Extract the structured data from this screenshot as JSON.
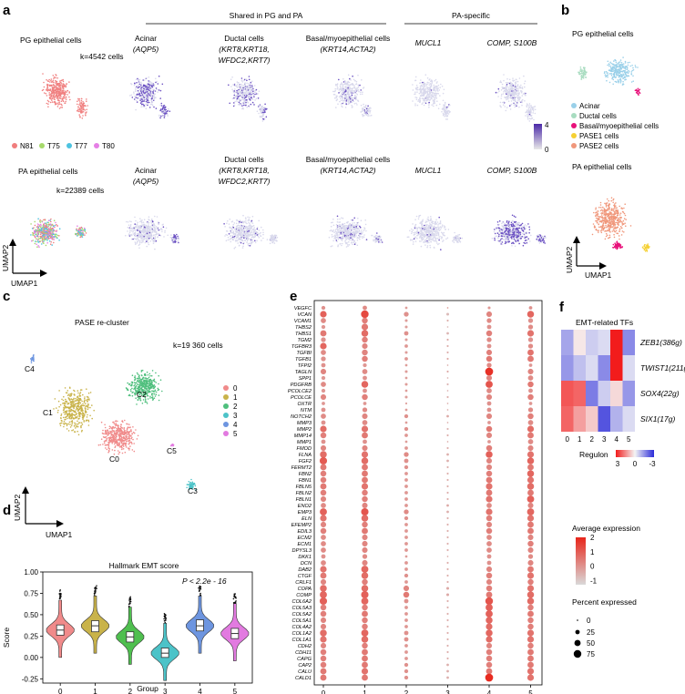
{
  "panels": {
    "a": "a",
    "b": "b",
    "c": "c",
    "d": "d",
    "e": "e",
    "f": "f"
  },
  "panel_a": {
    "shared_header": "Shared in PG and PA",
    "specific_header": "PA-specific",
    "pg_title": "PG epithelial cells",
    "pg_count": "k=4542 cells",
    "pa_title": "PA epithelial cells",
    "pa_count": "k=22389 cells",
    "legend": [
      {
        "label": "N81",
        "color": "#f07d7d"
      },
      {
        "label": "T75",
        "color": "#a6d96a"
      },
      {
        "label": "T77",
        "color": "#4dc3e0"
      },
      {
        "label": "T80",
        "color": "#e57fe5"
      }
    ],
    "markers": [
      {
        "title": "Acinar",
        "genes": "(AQP5)"
      },
      {
        "title": "Ductal cells",
        "genes": "(KRT8,KRT18,",
        "genes2": "WFDC2,KRT7)"
      },
      {
        "title": "Basal/myoepithelial cells",
        "genes": "(KRT14,ACTA2)"
      },
      {
        "title": "",
        "genes": "MUCL1"
      },
      {
        "title": "",
        "genes": "COMP, S100B"
      }
    ],
    "colorbar": {
      "max": "4",
      "min": "0",
      "low_color": "#e8e8e8",
      "high_color": "#4b2aa8"
    },
    "axis_x": "UMAP1",
    "axis_y": "UMAP2"
  },
  "panel_b": {
    "pg_title": "PG epithelial cells",
    "pa_title": "PA epithelial cells",
    "legend": [
      {
        "label": "Acinar",
        "color": "#9ad0e9"
      },
      {
        "label": "Ductal cells",
        "color": "#a8dcc0"
      },
      {
        "label": "Basal/myoepithelial cells",
        "color": "#e8117a"
      },
      {
        "label": "PASE1 cells",
        "color": "#f5d033"
      },
      {
        "label": "PASE2 cells",
        "color": "#f0977b"
      }
    ],
    "axis_x": "UMAP1",
    "axis_y": "UMAP2"
  },
  "panel_c": {
    "title": "PASE re-cluster",
    "count": "k=19 360 cells",
    "clusters": [
      {
        "label": "0",
        "name": "C0",
        "color": "#f08a8a"
      },
      {
        "label": "1",
        "name": "C1",
        "color": "#c9b34a"
      },
      {
        "label": "2",
        "name": "C2",
        "color": "#4fbf7d"
      },
      {
        "label": "3",
        "name": "C3",
        "color": "#4cc3c8"
      },
      {
        "label": "4",
        "name": "C4",
        "color": "#6d95e0"
      },
      {
        "label": "5",
        "name": "C5",
        "color": "#e27ae0"
      }
    ],
    "axis_x": "UMAP1",
    "axis_y": "UMAP2"
  },
  "chart_data": [
    {
      "type": "violin",
      "title": "Hallmark EMT score",
      "annotation": "P < 2.2e - 16",
      "xlabel": "Group",
      "ylabel": "Score",
      "ylim": [
        -0.3,
        1.0
      ],
      "yticks": [
        "1.00",
        "0.75",
        "0.50",
        "0.25",
        "0.00",
        "-0.25"
      ],
      "ytick_values": [
        1.0,
        0.75,
        0.5,
        0.25,
        0.0,
        -0.25
      ],
      "categories": [
        "0",
        "1",
        "2",
        "3",
        "4",
        "5"
      ],
      "medians": [
        0.32,
        0.37,
        0.24,
        0.05,
        0.37,
        0.28
      ],
      "q1": [
        0.26,
        0.3,
        0.18,
        0.0,
        0.31,
        0.22
      ],
      "q3": [
        0.38,
        0.43,
        0.3,
        0.11,
        0.44,
        0.34
      ],
      "colors": [
        "#f08a8a",
        "#c9b34a",
        "#4fbf4f",
        "#4cc3c8",
        "#6d95e0",
        "#e27ae0"
      ]
    },
    {
      "type": "dotplot",
      "xlabel_ticks": [
        "0",
        "1",
        "2",
        "3",
        "4",
        "5"
      ],
      "genes": [
        "VEGFC",
        "VCAN",
        "VCAM1",
        "THBS2",
        "THBS1",
        "TGM2",
        "TGFBR3",
        "TGFBI",
        "TGFB1",
        "TFPI2",
        "TAGLN",
        "SPP1",
        "PDGFRB",
        "PCOLCE2",
        "PCOLCE",
        "OXTR",
        "NTM",
        "NOTCH2",
        "MMP3",
        "MMP2",
        "MMP14",
        "MMP1",
        "FMOD",
        "FLNA",
        "FGF2",
        "FERMT2",
        "FBN2",
        "FBN1",
        "FBLN5",
        "FBLN2",
        "FBLN1",
        "ENO2",
        "EMP3",
        "ELN",
        "EFEMP2",
        "EDIL3",
        "ECM2",
        "ECM1",
        "DPYSL3",
        "DKK1",
        "DCN",
        "DAB2",
        "CTGF",
        "CRLF1",
        "COPA",
        "COMP",
        "COL6A2",
        "COL5A3",
        "COL5A2",
        "COL5A1",
        "COL4A2",
        "COL1A2",
        "COL1A1",
        "CDH2",
        "CDH11",
        "CAPG",
        "CAP2",
        "CALU",
        "CALD1"
      ],
      "legend_title_expr": "Average expression",
      "legend_expr_ticks": [
        "2",
        "1",
        "0",
        "-1"
      ],
      "legend_expr_values": [
        2,
        1,
        0,
        -1
      ],
      "legend_title_pct": "Percent expressed",
      "legend_pct_ticks": [
        "25",
        "50",
        "75"
      ],
      "legend_pct_values": [
        25,
        50,
        75
      ],
      "matrix_expr": [
        [
          0.2,
          0.3,
          0,
          0,
          0.1,
          0.2
        ],
        [
          1,
          1.4,
          0.2,
          -0.5,
          0.4,
          0.9
        ],
        [
          0.3,
          0.5,
          0,
          -0.3,
          0.3,
          0.2
        ],
        [
          0.1,
          0.6,
          0,
          -0.5,
          0.2,
          0.3
        ],
        [
          0.6,
          0.8,
          0.2,
          -0.4,
          0.5,
          0.7
        ],
        [
          0.2,
          0.5,
          0,
          -0.2,
          0.3,
          0.2
        ],
        [
          0.9,
          0.4,
          0.1,
          -0.3,
          0.2,
          0.3
        ],
        [
          0.3,
          0.4,
          0,
          -0.3,
          0.5,
          0.7
        ],
        [
          0.2,
          0.5,
          0.1,
          -0.2,
          0.6,
          0.6
        ],
        [
          0.2,
          0.1,
          0,
          -0.3,
          0.3,
          0.1
        ],
        [
          0.4,
          0.3,
          0,
          -0.2,
          1.8,
          0.4
        ],
        [
          0.1,
          0.2,
          0,
          -0.4,
          0.4,
          0.3
        ],
        [
          0.3,
          0.9,
          0,
          -0.4,
          1.2,
          0.6
        ],
        [
          0.1,
          0.2,
          0,
          -0.4,
          0.3,
          0.2
        ],
        [
          0.4,
          0.5,
          0,
          -0.3,
          0.4,
          0.5
        ],
        [
          0.1,
          0.1,
          0,
          -0.3,
          0.2,
          0.1
        ],
        [
          0.2,
          0.3,
          0,
          -0.3,
          0.2,
          0.3
        ],
        [
          0.3,
          0.4,
          0.2,
          -0.2,
          0.4,
          0.5
        ],
        [
          0.2,
          0.3,
          0,
          -0.3,
          0.1,
          0.3
        ],
        [
          0.8,
          0.7,
          0.2,
          -0.4,
          0.6,
          0.8
        ],
        [
          0.5,
          0.6,
          0.1,
          -0.3,
          0.4,
          0.6
        ],
        [
          0.2,
          0.2,
          0,
          -0.3,
          0.1,
          0.3
        ],
        [
          0.4,
          0.4,
          0.1,
          -0.3,
          0.5,
          0.4
        ],
        [
          0.8,
          0.7,
          0.3,
          -0.3,
          1.0,
          0.7
        ],
        [
          1.1,
          0.8,
          0.2,
          -0.3,
          0.4,
          0.9
        ],
        [
          0.6,
          0.6,
          0.2,
          -0.3,
          0.4,
          0.6
        ],
        [
          0.5,
          0.6,
          0.1,
          -0.3,
          0.5,
          0.9
        ],
        [
          0.5,
          0.6,
          0.1,
          -0.3,
          0.6,
          0.7
        ],
        [
          0.6,
          0.7,
          0.1,
          -0.3,
          0.7,
          0.8
        ],
        [
          0.5,
          0.5,
          0.1,
          -0.3,
          0.6,
          0.6
        ],
        [
          0.4,
          0.5,
          0.1,
          -0.3,
          0.7,
          1.0
        ],
        [
          0.3,
          0.4,
          0.1,
          -0.2,
          0.3,
          0.4
        ],
        [
          1.0,
          1.2,
          0.3,
          -0.3,
          0.7,
          0.9
        ],
        [
          0.7,
          0.8,
          0.2,
          -0.3,
          0.5,
          0.7
        ],
        [
          0.4,
          0.5,
          0.1,
          -0.3,
          0.4,
          0.6
        ],
        [
          0.5,
          0.6,
          0.1,
          -0.3,
          0.5,
          0.6
        ],
        [
          0.3,
          0.4,
          0.1,
          -0.3,
          0.3,
          0.4
        ],
        [
          0.3,
          0.4,
          0.1,
          -0.3,
          0.3,
          0.5
        ],
        [
          0.3,
          0.4,
          0.1,
          -0.3,
          0.3,
          0.4
        ],
        [
          0.2,
          0.3,
          0,
          -0.3,
          0.2,
          0.3
        ],
        [
          0.3,
          0.4,
          0.1,
          -0.3,
          0.2,
          0.4
        ],
        [
          0.7,
          0.9,
          0.1,
          -0.3,
          0.4,
          0.6
        ],
        [
          0.6,
          0.8,
          0.2,
          -0.3,
          0.5,
          0.7
        ],
        [
          0.4,
          0.5,
          0.1,
          -0.3,
          0.4,
          0.5
        ],
        [
          0.8,
          0.8,
          0.4,
          -0.2,
          0.5,
          0.7
        ],
        [
          0.9,
          1.0,
          0.6,
          -0.2,
          0.6,
          0.8
        ],
        [
          1.0,
          0.9,
          0.2,
          -0.3,
          1.2,
          0.8
        ],
        [
          0.5,
          0.5,
          0.1,
          -0.3,
          1.0,
          0.5
        ],
        [
          0.5,
          0.6,
          0.1,
          -0.3,
          1.0,
          0.6
        ],
        [
          0.4,
          0.5,
          0.1,
          -0.3,
          0.9,
          0.5
        ],
        [
          0.4,
          0.5,
          0.1,
          -0.3,
          0.8,
          0.5
        ],
        [
          0.8,
          0.9,
          0.2,
          -0.3,
          0.9,
          0.7
        ],
        [
          0.7,
          0.8,
          0.2,
          -0.3,
          0.8,
          0.7
        ],
        [
          0.4,
          0.5,
          0.1,
          -0.3,
          0.4,
          0.5
        ],
        [
          0.5,
          0.6,
          0.1,
          -0.3,
          0.5,
          0.6
        ],
        [
          0.5,
          0.6,
          0.1,
          -0.3,
          0.5,
          0.6
        ],
        [
          0.5,
          0.6,
          0.2,
          -0.3,
          0.5,
          0.6
        ],
        [
          0.6,
          0.7,
          0.2,
          -0.3,
          0.6,
          0.7
        ],
        [
          0.6,
          0.6,
          0.2,
          -0.3,
          1.9,
          0.7
        ]
      ],
      "matrix_pct": [
        [
          20,
          25,
          8,
          3,
          10,
          15
        ],
        [
          55,
          75,
          30,
          10,
          40,
          60
        ],
        [
          35,
          45,
          10,
          5,
          30,
          30
        ],
        [
          20,
          55,
          10,
          3,
          25,
          30
        ],
        [
          50,
          60,
          25,
          8,
          45,
          55
        ],
        [
          30,
          45,
          10,
          5,
          30,
          30
        ],
        [
          55,
          40,
          15,
          5,
          25,
          30
        ],
        [
          35,
          45,
          10,
          5,
          40,
          50
        ],
        [
          30,
          45,
          15,
          5,
          45,
          50
        ],
        [
          25,
          20,
          8,
          3,
          30,
          15
        ],
        [
          40,
          35,
          10,
          5,
          80,
          40
        ],
        [
          20,
          25,
          8,
          3,
          40,
          35
        ],
        [
          35,
          60,
          10,
          5,
          65,
          45
        ],
        [
          20,
          25,
          8,
          3,
          35,
          25
        ],
        [
          40,
          45,
          10,
          5,
          40,
          45
        ],
        [
          15,
          15,
          5,
          3,
          25,
          15
        ],
        [
          25,
          30,
          8,
          3,
          25,
          30
        ],
        [
          35,
          40,
          20,
          8,
          40,
          45
        ],
        [
          25,
          35,
          8,
          3,
          15,
          35
        ],
        [
          55,
          55,
          20,
          5,
          45,
          55
        ],
        [
          45,
          50,
          15,
          5,
          40,
          50
        ],
        [
          25,
          25,
          8,
          3,
          15,
          35
        ],
        [
          40,
          40,
          15,
          5,
          45,
          40
        ],
        [
          60,
          55,
          30,
          8,
          60,
          55
        ],
        [
          70,
          60,
          25,
          8,
          40,
          60
        ],
        [
          50,
          50,
          20,
          5,
          40,
          50
        ],
        [
          45,
          50,
          15,
          5,
          45,
          60
        ],
        [
          45,
          50,
          15,
          5,
          50,
          55
        ],
        [
          50,
          55,
          15,
          5,
          55,
          60
        ],
        [
          45,
          45,
          15,
          5,
          50,
          50
        ],
        [
          40,
          45,
          15,
          5,
          55,
          65
        ],
        [
          35,
          40,
          15,
          8,
          35,
          40
        ],
        [
          65,
          70,
          30,
          8,
          55,
          65
        ],
        [
          55,
          60,
          20,
          5,
          45,
          55
        ],
        [
          40,
          45,
          15,
          5,
          40,
          50
        ],
        [
          45,
          50,
          15,
          5,
          45,
          50
        ],
        [
          35,
          40,
          15,
          5,
          35,
          40
        ],
        [
          35,
          40,
          15,
          5,
          35,
          45
        ],
        [
          35,
          40,
          15,
          5,
          35,
          40
        ],
        [
          25,
          30,
          8,
          3,
          25,
          30
        ],
        [
          35,
          40,
          15,
          5,
          25,
          40
        ],
        [
          55,
          65,
          15,
          5,
          40,
          50
        ],
        [
          50,
          60,
          20,
          5,
          45,
          55
        ],
        [
          40,
          45,
          15,
          5,
          40,
          45
        ],
        [
          60,
          60,
          40,
          10,
          45,
          55
        ],
        [
          65,
          70,
          45,
          10,
          50,
          60
        ],
        [
          70,
          65,
          25,
          5,
          75,
          60
        ],
        [
          45,
          45,
          15,
          5,
          65,
          45
        ],
        [
          45,
          50,
          15,
          5,
          65,
          50
        ],
        [
          40,
          45,
          15,
          5,
          60,
          45
        ],
        [
          40,
          45,
          15,
          5,
          55,
          45
        ],
        [
          60,
          65,
          25,
          5,
          60,
          55
        ],
        [
          55,
          60,
          25,
          5,
          55,
          55
        ],
        [
          40,
          45,
          15,
          5,
          40,
          45
        ],
        [
          45,
          50,
          15,
          5,
          45,
          50
        ],
        [
          45,
          50,
          15,
          5,
          45,
          50
        ],
        [
          45,
          50,
          20,
          8,
          45,
          50
        ],
        [
          50,
          55,
          20,
          8,
          50,
          55
        ],
        [
          50,
          50,
          20,
          8,
          80,
          55
        ]
      ]
    },
    {
      "type": "heatmap",
      "title": "EMT-related TFs",
      "rows": [
        "ZEB1(386g)",
        "TWIST1(211g)",
        "SOX4(22g)",
        "SIX1(17g)"
      ],
      "columns": [
        "0",
        "1",
        "2",
        "3",
        "4",
        "5"
      ],
      "values": [
        [
          -1.2,
          0.2,
          -0.6,
          -0.4,
          3.0,
          -1.6
        ],
        [
          -1.4,
          -0.8,
          -0.4,
          -1.6,
          3.0,
          -0.4
        ],
        [
          2.2,
          2.0,
          -1.8,
          -0.6,
          0.4,
          -1.4
        ],
        [
          2.0,
          1.2,
          0.6,
          -2.4,
          -1.0,
          -0.4
        ]
      ],
      "legend_title": "Regulon",
      "legend_ticks": [
        "3",
        "0",
        "-3"
      ],
      "legend_values": [
        3,
        0,
        -3
      ]
    }
  ]
}
